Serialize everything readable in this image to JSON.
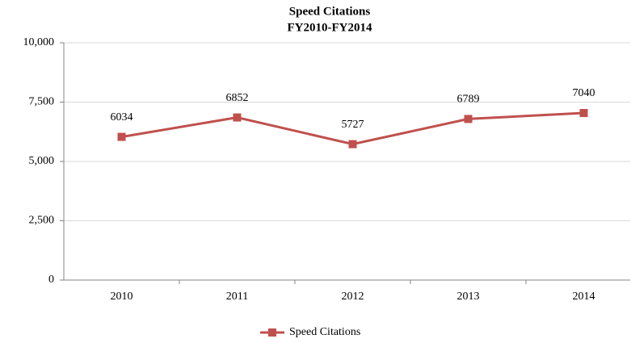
{
  "chart_data": {
    "type": "line",
    "title": "Speed Citations",
    "subtitle": "FY2010-FY2014",
    "categories": [
      "2010",
      "2011",
      "2012",
      "2013",
      "2014"
    ],
    "series": [
      {
        "name": "Speed Citations",
        "color": "#c0504d",
        "values": [
          6034,
          6852,
          5727,
          6789,
          7040
        ]
      }
    ],
    "ylim": [
      0,
      10000
    ],
    "yticks": [
      0,
      {
        "value": 2500,
        "label": "2,500"
      },
      {
        "value": 5000,
        "label": "5,000"
      },
      {
        "value": 7500,
        "label": "7,500"
      },
      {
        "value": 10000,
        "label": "10,000"
      }
    ],
    "grid": true,
    "legend": "bottom"
  }
}
